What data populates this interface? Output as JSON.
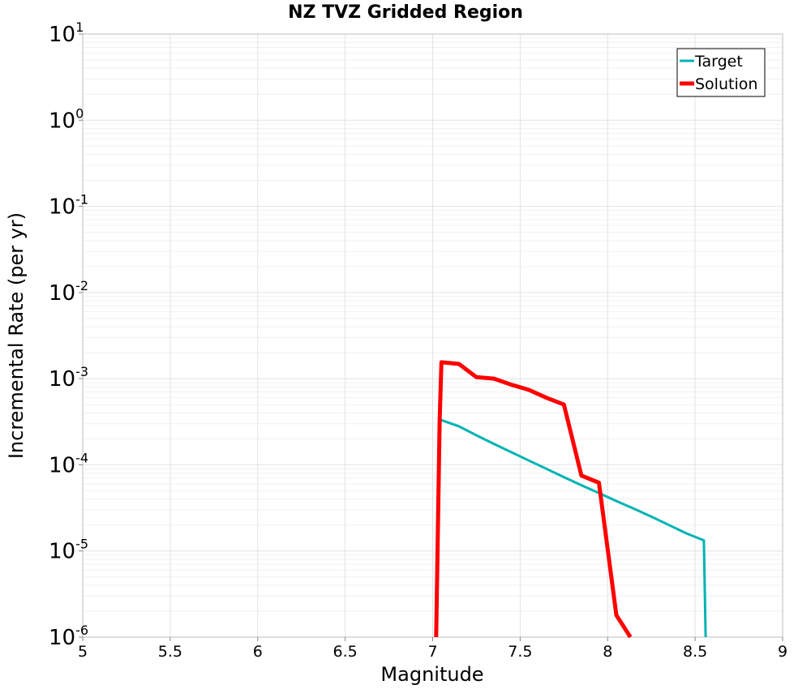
{
  "chart_data": {
    "type": "line",
    "title": "NZ TVZ Gridded Region",
    "xlabel": "Magnitude",
    "ylabel": "Incremental Rate (per yr)",
    "xlim": [
      5,
      9
    ],
    "ylim": [
      1e-06,
      10
    ],
    "yscale": "log",
    "x_ticks": [
      "5",
      "5.5",
      "6",
      "6.5",
      "7",
      "7.5",
      "8",
      "8.5",
      "9"
    ],
    "y_ticks": [
      {
        "base": "10",
        "exp": "-6"
      },
      {
        "base": "10",
        "exp": "-5"
      },
      {
        "base": "10",
        "exp": "-4"
      },
      {
        "base": "10",
        "exp": "-3"
      },
      {
        "base": "10",
        "exp": "-2"
      },
      {
        "base": "10",
        "exp": "-1"
      },
      {
        "base": "10",
        "exp": "0"
      },
      {
        "base": "10",
        "exp": "1"
      }
    ],
    "grid": true,
    "legend_position": "top-right",
    "series": [
      {
        "name": "Target",
        "color": "#00b3b3",
        "x": [
          7.05,
          7.15,
          7.25,
          7.35,
          7.45,
          7.55,
          7.65,
          7.75,
          7.85,
          7.95,
          8.05,
          8.15,
          8.25,
          8.35,
          8.45,
          8.55,
          8.56
        ],
        "y": [
          0.00033,
          0.00028,
          0.00022,
          0.000175,
          0.00014,
          0.000112,
          9e-05,
          7.2e-05,
          5.8e-05,
          4.7e-05,
          3.8e-05,
          3.1e-05,
          2.5e-05,
          2e-05,
          1.6e-05,
          1.33e-05,
          1e-06
        ]
      },
      {
        "name": "Solution",
        "color": "#ff0000",
        "x": [
          7.02,
          7.04,
          7.05,
          7.15,
          7.25,
          7.35,
          7.45,
          7.55,
          7.65,
          7.75,
          7.85,
          7.95,
          8.05,
          8.13
        ],
        "y": [
          1e-06,
          0.00032,
          0.00155,
          0.00148,
          0.00104,
          0.001,
          0.00085,
          0.00074,
          0.0006,
          0.0005,
          7.5e-05,
          6.2e-05,
          1.8e-06,
          1e-06
        ]
      }
    ]
  }
}
